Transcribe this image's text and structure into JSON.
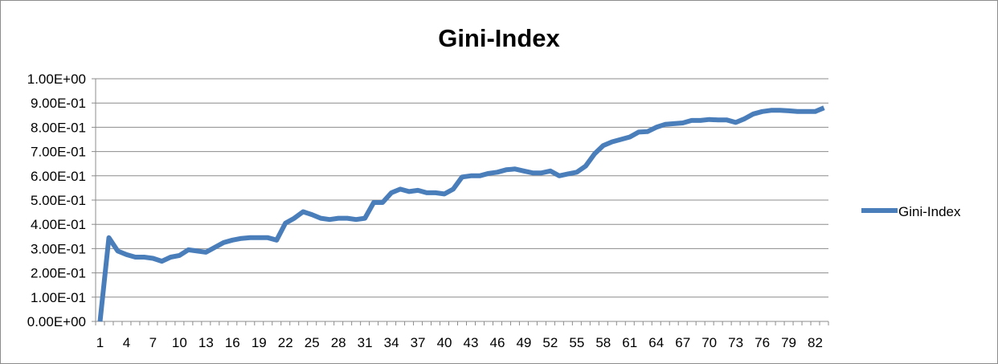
{
  "chart_data": {
    "type": "line",
    "title": "Gini-Index",
    "xlabel": "",
    "ylabel": "",
    "ylim": [
      0,
      1.0
    ],
    "y_ticks": [
      0,
      0.1,
      0.2,
      0.3,
      0.4,
      0.5,
      0.6,
      0.7,
      0.8,
      0.9,
      1.0
    ],
    "y_tick_labels": [
      "0.00E+00",
      "1.00E-01",
      "2.00E-01",
      "3.00E-01",
      "4.00E-01",
      "5.00E-01",
      "6.00E-01",
      "7.00E-01",
      "8.00E-01",
      "9.00E-01",
      "1.00E+00"
    ],
    "x_tick_labels": [
      "1",
      "4",
      "7",
      "10",
      "13",
      "16",
      "19",
      "22",
      "25",
      "28",
      "31",
      "34",
      "37",
      "40",
      "43",
      "46",
      "49",
      "52",
      "55",
      "58",
      "61",
      "64",
      "67",
      "70",
      "73",
      "76",
      "79",
      "82"
    ],
    "x_tick_step": 3,
    "grid": true,
    "legend_position": "right",
    "series_color": "#4a7ebb",
    "series": [
      {
        "name": "Gini-Index",
        "x": [
          1,
          2,
          3,
          4,
          5,
          6,
          7,
          8,
          9,
          10,
          11,
          12,
          13,
          14,
          15,
          16,
          17,
          18,
          19,
          20,
          21,
          22,
          23,
          24,
          25,
          26,
          27,
          28,
          29,
          30,
          31,
          32,
          33,
          34,
          35,
          36,
          37,
          38,
          39,
          40,
          41,
          42,
          43,
          44,
          45,
          46,
          47,
          48,
          49,
          50,
          51,
          52,
          53,
          54,
          55,
          56,
          57,
          58,
          59,
          60,
          61,
          62,
          63,
          64,
          65,
          66,
          67,
          68,
          69,
          70,
          71,
          72,
          73,
          74,
          75,
          76,
          77,
          78,
          79,
          80,
          81,
          82,
          83
        ],
        "values": [
          0.0,
          0.345,
          0.29,
          0.275,
          0.265,
          0.265,
          0.26,
          0.248,
          0.265,
          0.272,
          0.295,
          0.29,
          0.285,
          0.305,
          0.325,
          0.335,
          0.342,
          0.345,
          0.345,
          0.345,
          0.335,
          0.405,
          0.425,
          0.452,
          0.44,
          0.425,
          0.42,
          0.425,
          0.425,
          0.42,
          0.425,
          0.49,
          0.49,
          0.53,
          0.545,
          0.535,
          0.54,
          0.53,
          0.53,
          0.525,
          0.545,
          0.595,
          0.6,
          0.6,
          0.61,
          0.615,
          0.625,
          0.628,
          0.62,
          0.612,
          0.612,
          0.62,
          0.6,
          0.608,
          0.615,
          0.64,
          0.69,
          0.725,
          0.74,
          0.75,
          0.76,
          0.78,
          0.782,
          0.8,
          0.812,
          0.815,
          0.818,
          0.828,
          0.828,
          0.832,
          0.83,
          0.83,
          0.82,
          0.835,
          0.855,
          0.865,
          0.87,
          0.87,
          0.868,
          0.865,
          0.865,
          0.865,
          0.88
        ]
      }
    ]
  }
}
